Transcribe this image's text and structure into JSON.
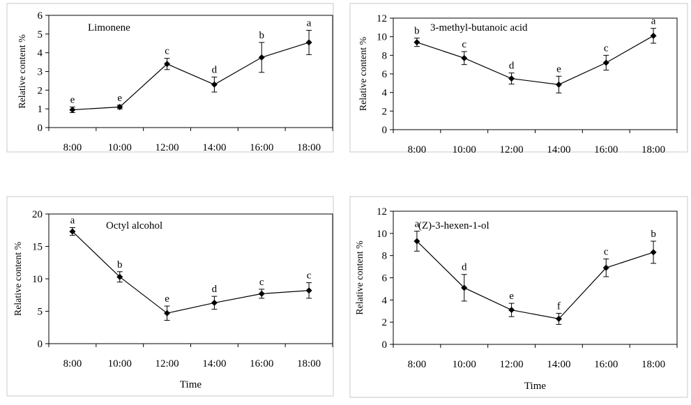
{
  "chart_data": [
    {
      "type": "line",
      "title": "Limonene",
      "xlabel": "",
      "ylabel": "Relative content %",
      "categories": [
        "8:00",
        "10:00",
        "12:00",
        "14:00",
        "16:00",
        "18:00"
      ],
      "values": [
        0.95,
        1.1,
        3.4,
        2.3,
        3.75,
        4.55
      ],
      "errors": [
        0.15,
        0.1,
        0.3,
        0.4,
        0.8,
        0.65
      ],
      "significance": [
        "e",
        "e",
        "c",
        "d",
        "b",
        "a"
      ],
      "ylim": [
        0,
        6
      ],
      "yticks": [
        0,
        1,
        2,
        3,
        4,
        5,
        6
      ],
      "grid": false
    },
    {
      "type": "line",
      "title": "3-methyl-butanoic acid",
      "xlabel": "",
      "ylabel": "Relative content %",
      "categories": [
        "8:00",
        "10:00",
        "12:00",
        "14:00",
        "16:00",
        "18:00"
      ],
      "values": [
        9.4,
        7.7,
        5.5,
        4.85,
        7.2,
        10.1
      ],
      "errors": [
        0.45,
        0.7,
        0.6,
        0.9,
        0.8,
        0.8
      ],
      "significance": [
        "b",
        "c",
        "d",
        "e",
        "c",
        "a"
      ],
      "ylim": [
        0,
        12
      ],
      "yticks": [
        0,
        2,
        4,
        6,
        8,
        10,
        12
      ],
      "grid": false
    },
    {
      "type": "line",
      "title": "Octyl alcohol",
      "xlabel": "Time",
      "ylabel": "Relative content %",
      "categories": [
        "8:00",
        "10:00",
        "12:00",
        "14:00",
        "16:00",
        "18:00"
      ],
      "values": [
        17.3,
        10.3,
        4.7,
        6.3,
        7.7,
        8.2
      ],
      "errors": [
        0.6,
        0.8,
        1.1,
        1.0,
        0.7,
        1.2
      ],
      "significance": [
        "a",
        "b",
        "e",
        "d",
        "c",
        "c"
      ],
      "ylim": [
        0,
        20
      ],
      "yticks": [
        0,
        5,
        10,
        15,
        20
      ],
      "grid": false
    },
    {
      "type": "line",
      "title": "(Z)-3-hexen-1-ol",
      "xlabel": "Time",
      "ylabel": "Relative content %",
      "categories": [
        "8:00",
        "10:00",
        "12:00",
        "14:00",
        "16:00",
        "18:00"
      ],
      "values": [
        9.3,
        5.1,
        3.1,
        2.3,
        6.9,
        8.3
      ],
      "errors": [
        0.9,
        1.2,
        0.6,
        0.5,
        0.8,
        1.0
      ],
      "significance": [
        "a",
        "d",
        "e",
        "f",
        "c",
        "b"
      ],
      "ylim": [
        0,
        12
      ],
      "yticks": [
        0,
        2,
        4,
        6,
        8,
        10,
        12
      ],
      "grid": false
    }
  ],
  "colors": {
    "line": "#000000",
    "marker": "#000000",
    "frame": "#c8c8c8",
    "background": "#ffffff"
  }
}
